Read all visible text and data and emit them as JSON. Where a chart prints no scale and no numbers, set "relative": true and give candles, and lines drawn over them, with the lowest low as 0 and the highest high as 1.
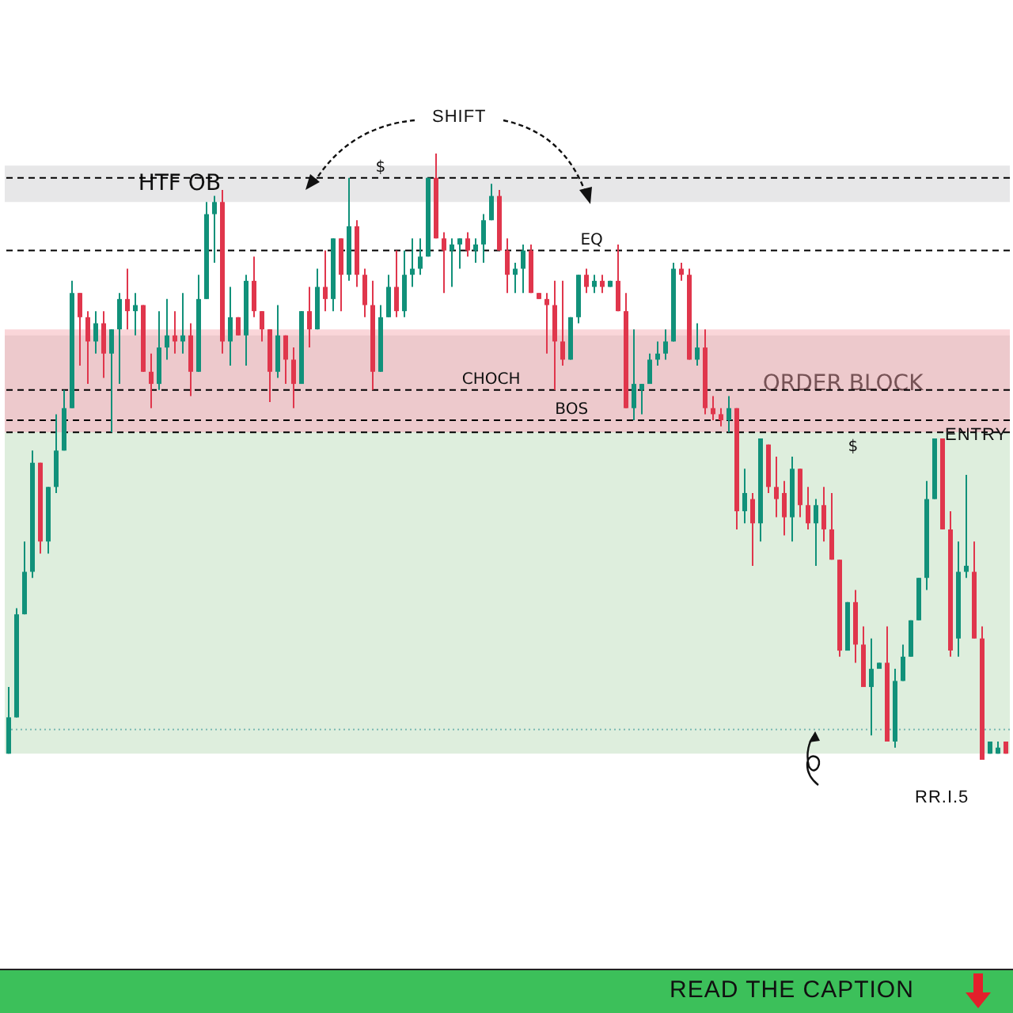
{
  "chart_data": {
    "type": "candlestick",
    "relative": true,
    "categories": [
      null,
      null,
      null,
      null,
      null,
      null,
      null,
      null,
      null,
      null,
      null,
      null,
      null,
      null,
      null,
      null,
      null,
      null,
      null,
      null,
      null,
      null,
      null,
      null,
      null,
      null,
      null,
      null,
      null,
      null,
      null,
      null,
      null,
      null,
      null,
      null,
      null,
      null,
      null,
      null,
      null,
      null,
      null,
      null,
      null,
      null,
      null,
      null,
      null,
      null,
      null,
      null,
      null,
      null,
      null,
      null,
      null,
      null,
      null,
      null,
      null,
      null,
      null,
      null,
      null,
      null,
      null,
      null,
      null,
      null,
      null,
      null,
      null,
      null,
      null,
      null,
      null,
      null,
      null,
      null,
      null,
      null,
      null,
      null,
      null,
      null,
      null,
      null,
      null,
      null,
      null,
      null,
      null,
      null,
      null,
      null,
      null,
      null,
      null,
      null,
      null,
      null,
      null,
      null,
      null,
      null,
      null,
      null,
      null,
      null,
      null,
      null,
      null,
      null,
      null,
      null,
      null,
      null,
      null,
      null,
      null,
      null,
      null,
      null,
      null,
      null,
      null
    ],
    "ohlc": [
      [
        0.01,
        0.12,
        0.01,
        0.07
      ],
      [
        0.07,
        0.25,
        0.07,
        0.24
      ],
      [
        0.24,
        0.36,
        0.24,
        0.31
      ],
      [
        0.31,
        0.51,
        0.3,
        0.49
      ],
      [
        0.49,
        0.49,
        0.34,
        0.36
      ],
      [
        0.36,
        0.45,
        0.34,
        0.45
      ],
      [
        0.45,
        0.57,
        0.44,
        0.51
      ],
      [
        0.51,
        0.61,
        0.51,
        0.58
      ],
      [
        0.58,
        0.79,
        0.58,
        0.77
      ],
      [
        0.77,
        0.77,
        0.65,
        0.73
      ],
      [
        0.73,
        0.74,
        0.62,
        0.69
      ],
      [
        0.69,
        0.74,
        0.67,
        0.72
      ],
      [
        0.72,
        0.74,
        0.63,
        0.67
      ],
      [
        0.67,
        0.71,
        0.54,
        0.71
      ],
      [
        0.71,
        0.77,
        0.62,
        0.76
      ],
      [
        0.76,
        0.81,
        0.71,
        0.74
      ],
      [
        0.74,
        0.77,
        0.7,
        0.75
      ],
      [
        0.75,
        0.75,
        0.64,
        0.64
      ],
      [
        0.64,
        0.67,
        0.58,
        0.62
      ],
      [
        0.62,
        0.74,
        0.61,
        0.68
      ],
      [
        0.68,
        0.76,
        0.66,
        0.7
      ],
      [
        0.7,
        0.74,
        0.67,
        0.69
      ],
      [
        0.69,
        0.77,
        0.67,
        0.7
      ],
      [
        0.7,
        0.72,
        0.6,
        0.64
      ],
      [
        0.64,
        0.8,
        0.64,
        0.76
      ],
      [
        0.76,
        0.92,
        0.76,
        0.9
      ],
      [
        0.9,
        0.93,
        0.82,
        0.92
      ],
      [
        0.92,
        0.94,
        0.67,
        0.69
      ],
      [
        0.69,
        0.78,
        0.65,
        0.73
      ],
      [
        0.73,
        0.73,
        0.7,
        0.7
      ],
      [
        0.7,
        0.8,
        0.65,
        0.79
      ],
      [
        0.79,
        0.83,
        0.73,
        0.74
      ],
      [
        0.74,
        0.74,
        0.69,
        0.71
      ],
      [
        0.71,
        0.71,
        0.59,
        0.64
      ],
      [
        0.64,
        0.75,
        0.63,
        0.7
      ],
      [
        0.7,
        0.7,
        0.62,
        0.66
      ],
      [
        0.66,
        0.68,
        0.58,
        0.62
      ],
      [
        0.62,
        0.74,
        0.62,
        0.74
      ],
      [
        0.74,
        0.78,
        0.68,
        0.71
      ],
      [
        0.71,
        0.81,
        0.71,
        0.78
      ],
      [
        0.78,
        0.84,
        0.74,
        0.76
      ],
      [
        0.76,
        0.86,
        0.74,
        0.86
      ],
      [
        0.86,
        0.86,
        0.74,
        0.8
      ],
      [
        0.8,
        0.96,
        0.79,
        0.88
      ],
      [
        0.88,
        0.89,
        0.78,
        0.8
      ],
      [
        0.8,
        0.81,
        0.73,
        0.75
      ],
      [
        0.75,
        0.79,
        0.61,
        0.64
      ],
      [
        0.64,
        0.75,
        0.64,
        0.73
      ],
      [
        0.73,
        0.8,
        0.73,
        0.78
      ],
      [
        0.78,
        0.84,
        0.73,
        0.74
      ],
      [
        0.74,
        0.84,
        0.73,
        0.8
      ],
      [
        0.8,
        0.86,
        0.78,
        0.81
      ],
      [
        0.81,
        0.86,
        0.8,
        0.83
      ],
      [
        0.83,
        0.96,
        0.83,
        0.96
      ],
      [
        0.96,
        1,
        0.86,
        0.86
      ],
      [
        0.86,
        0.87,
        0.77,
        0.84
      ],
      [
        0.84,
        0.86,
        0.78,
        0.85
      ],
      [
        0.85,
        0.86,
        0.81,
        0.86
      ],
      [
        0.86,
        0.87,
        0.83,
        0.84
      ],
      [
        0.84,
        0.86,
        0.82,
        0.85
      ],
      [
        0.85,
        0.9,
        0.82,
        0.89
      ],
      [
        0.89,
        0.95,
        0.89,
        0.93
      ],
      [
        0.93,
        0.94,
        0.84,
        0.84
      ],
      [
        0.84,
        0.86,
        0.77,
        0.8
      ],
      [
        0.8,
        0.82,
        0.77,
        0.81
      ],
      [
        0.81,
        0.85,
        0.77,
        0.84
      ],
      [
        0.84,
        0.85,
        0.77,
        0.77
      ],
      [
        0.77,
        0.77,
        0.76,
        0.76
      ],
      [
        0.76,
        0.77,
        0.67,
        0.75
      ],
      [
        0.75,
        0.79,
        0.61,
        0.69
      ],
      [
        0.69,
        0.79,
        0.65,
        0.66
      ],
      [
        0.66,
        0.73,
        0.66,
        0.73
      ],
      [
        0.73,
        0.8,
        0.72,
        0.8
      ],
      [
        0.8,
        0.81,
        0.77,
        0.78
      ],
      [
        0.78,
        0.8,
        0.77,
        0.79
      ],
      [
        0.79,
        0.8,
        0.77,
        0.78
      ],
      [
        0.78,
        0.79,
        0.78,
        0.79
      ],
      [
        0.79,
        0.85,
        0.74,
        0.74
      ],
      [
        0.74,
        0.77,
        0.58,
        0.58
      ],
      [
        0.58,
        0.71,
        0.56,
        0.62
      ],
      [
        0.61,
        0.62,
        0.57,
        0.62
      ],
      [
        0.62,
        0.67,
        0.62,
        0.66
      ],
      [
        0.66,
        0.69,
        0.65,
        0.67
      ],
      [
        0.67,
        0.71,
        0.66,
        0.69
      ],
      [
        0.69,
        0.82,
        0.69,
        0.81
      ],
      [
        0.81,
        0.82,
        0.79,
        0.8
      ],
      [
        0.8,
        0.81,
        0.66,
        0.66
      ],
      [
        0.66,
        0.72,
        0.65,
        0.68
      ],
      [
        0.68,
        0.71,
        0.57,
        0.58
      ],
      [
        0.58,
        0.6,
        0.56,
        0.57
      ],
      [
        0.57,
        0.58,
        0.55,
        0.56
      ],
      [
        0.56,
        0.6,
        0.54,
        0.58
      ],
      [
        0.58,
        0.58,
        0.38,
        0.41
      ],
      [
        0.41,
        0.48,
        0.39,
        0.44
      ],
      [
        0.43,
        0.44,
        0.32,
        0.39
      ],
      [
        0.39,
        0.53,
        0.36,
        0.53
      ],
      [
        0.52,
        0.52,
        0.44,
        0.45
      ],
      [
        0.45,
        0.5,
        0.4,
        0.43
      ],
      [
        0.44,
        0.46,
        0.37,
        0.4
      ],
      [
        0.4,
        0.5,
        0.36,
        0.48
      ],
      [
        0.48,
        0.48,
        0.4,
        0.42
      ],
      [
        0.42,
        0.45,
        0.38,
        0.39
      ],
      [
        0.39,
        0.43,
        0.32,
        0.42
      ],
      [
        0.42,
        0.45,
        0.36,
        0.38
      ],
      [
        0.38,
        0.44,
        0.33,
        0.33
      ],
      [
        0.33,
        0.33,
        0.17,
        0.18
      ],
      [
        0.18,
        0.26,
        0.18,
        0.26
      ],
      [
        0.26,
        0.28,
        0.16,
        0.19
      ],
      [
        0.19,
        0.22,
        0.12,
        0.12
      ],
      [
        0.12,
        0.2,
        0.04,
        0.15
      ],
      [
        0.15,
        0.16,
        0.15,
        0.16
      ],
      [
        0.16,
        0.22,
        0.03,
        0.03
      ],
      [
        0.03,
        0.15,
        0.02,
        0.13
      ],
      [
        0.13,
        0.19,
        0.13,
        0.17
      ],
      [
        0.17,
        0.23,
        0.17,
        0.23
      ],
      [
        0.23,
        0.3,
        0.23,
        0.3
      ],
      [
        0.3,
        0.46,
        0.28,
        0.43
      ],
      [
        0.43,
        0.53,
        0.43,
        0.53
      ],
      [
        0.53,
        0.53,
        0.38,
        0.38
      ],
      [
        0.38,
        0.41,
        0.17,
        0.18
      ],
      [
        0.2,
        0.36,
        0.17,
        0.31
      ],
      [
        0.31,
        0.47,
        0.3,
        0.32
      ],
      [
        0.31,
        0.36,
        0.2,
        0.2
      ],
      [
        0.2,
        0.22,
        0,
        0
      ],
      [
        0.01,
        0.03,
        0.01,
        0.03
      ],
      [
        0.01,
        0.03,
        0.01,
        0.02
      ],
      [
        0.03,
        0.03,
        0.01,
        0.01
      ]
    ],
    "colors": [
      "#11917a",
      "#11917a",
      "#11917a",
      "#11917a",
      "#e0364c",
      "#11917a",
      "#11917a",
      "#11917a",
      "#11917a",
      "#e0364c",
      "#e0364c",
      "#11917a",
      "#e0364c",
      "#11917a",
      "#11917a",
      "#e0364c",
      "#11917a",
      "#e0364c",
      "#e0364c",
      "#11917a",
      "#11917a",
      "#e0364c",
      "#11917a",
      "#e0364c",
      "#11917a",
      "#11917a",
      "#11917a",
      "#e0364c",
      "#11917a",
      "#e0364c",
      "#11917a",
      "#e0364c",
      "#e0364c",
      "#e0364c",
      "#11917a",
      "#e0364c",
      "#e0364c",
      "#11917a",
      "#e0364c",
      "#11917a",
      "#e0364c",
      "#11917a",
      "#e0364c",
      "#11917a",
      "#e0364c",
      "#e0364c",
      "#e0364c",
      "#11917a",
      "#11917a",
      "#e0364c",
      "#11917a",
      "#11917a",
      "#11917a",
      "#11917a",
      "#e0364c",
      "#e0364c",
      "#11917a",
      "#11917a",
      "#e0364c",
      "#11917a",
      "#11917a",
      "#11917a",
      "#e0364c",
      "#e0364c",
      "#11917a",
      "#11917a",
      "#e0364c",
      "#e0364c",
      "#e0364c",
      "#e0364c",
      "#e0364c",
      "#11917a",
      "#11917a",
      "#e0364c",
      "#11917a",
      "#e0364c",
      "#11917a",
      "#e0364c",
      "#e0364c",
      "#11917a",
      "#11917a",
      "#11917a",
      "#11917a",
      "#11917a",
      "#11917a",
      "#e0364c",
      "#e0364c",
      "#11917a",
      "#e0364c",
      "#e0364c",
      "#e0364c",
      "#11917a",
      "#e0364c",
      "#11917a",
      "#e0364c",
      "#11917a",
      "#e0364c",
      "#e0364c",
      "#e0364c",
      "#11917a",
      "#e0364c",
      "#e0364c",
      "#11917a",
      "#e0364c",
      "#e0364c",
      "#e0364c",
      "#11917a",
      "#e0364c",
      "#e0364c",
      "#11917a",
      "#11917a",
      "#e0364c",
      "#11917a",
      "#11917a",
      "#11917a",
      "#11917a",
      "#11917a",
      "#11917a",
      "#e0364c",
      "#e0364c",
      "#11917a",
      "#11917a",
      "#e0364c",
      "#e0364c",
      "#11917a",
      "#11917a",
      "#e0364c"
    ],
    "bands": [
      {
        "axis": "y",
        "from": 0.92,
        "to": 0.98,
        "label": "HTF OB",
        "color": "#c9cacd"
      },
      {
        "axis": "y",
        "from": 0.54,
        "to": 0.7,
        "label": "ORDER BLOCK",
        "color": "#c9cacd"
      },
      {
        "axis": "y",
        "from": 0.54,
        "to": 0.71,
        "color": "#f4a3aa"
      },
      {
        "axis": "y",
        "from": 0.01,
        "to": 0.54,
        "color": "#b5dab3"
      }
    ],
    "ref_lines": [
      {
        "axis": "y",
        "value": 0.96,
        "label": "$",
        "color": "#000000",
        "line_style": "dashed"
      },
      {
        "axis": "y",
        "value": 0.84,
        "label": "EQ",
        "color": "#000000",
        "line_style": "dashed"
      },
      {
        "axis": "y",
        "value": 0.61,
        "label": "CHOCH",
        "color": "#000000",
        "line_style": "dashed"
      },
      {
        "axis": "y",
        "value": 0.56,
        "label": "BOS",
        "color": "#000000",
        "line_style": "dashed"
      },
      {
        "axis": "y",
        "value": 0.54,
        "label": "$",
        "color": "#000000",
        "line_style": "dashed"
      },
      {
        "axis": "y",
        "value": 0.05,
        "color": "#7bb9b2",
        "line_style": "dotted"
      }
    ],
    "annotations": [
      "SHIFT",
      "ENTRY",
      "RR.I.5",
      "READ THE CAPTION"
    ]
  }
}
